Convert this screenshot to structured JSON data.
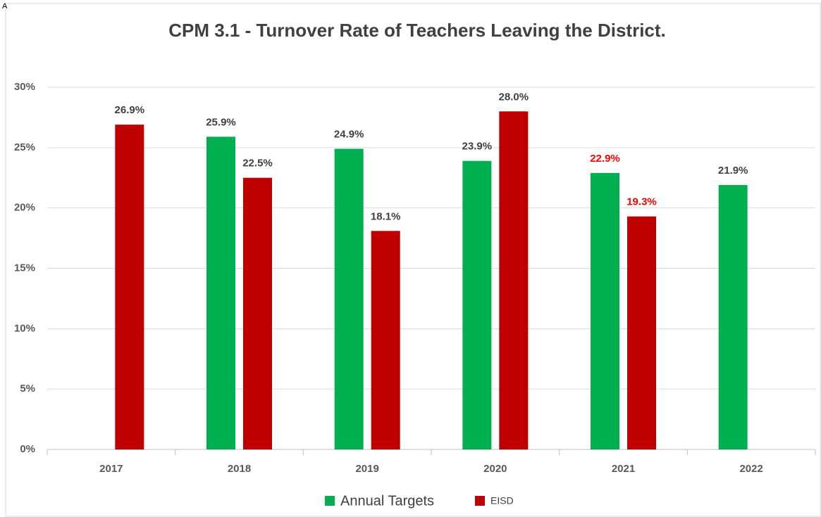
{
  "corner_text": "A",
  "chart_data": {
    "type": "bar",
    "title": "CPM 3.1 - Turnover Rate of Teachers Leaving the District.",
    "categories": [
      "2017",
      "2018",
      "2019",
      "2020",
      "2021",
      "2022"
    ],
    "series": [
      {
        "name": "Annual Targets",
        "color": "#00b050",
        "values": [
          null,
          25.9,
          24.9,
          23.9,
          22.9,
          21.9
        ],
        "value_labels": [
          null,
          "25.9%",
          "24.9%",
          "23.9%",
          "22.9%",
          "21.9%"
        ],
        "value_label_colors": [
          null,
          "#404040",
          "#404040",
          "#404040",
          "#ff0000",
          "#404040"
        ]
      },
      {
        "name": "EISD",
        "color": "#c00000",
        "values": [
          26.9,
          22.5,
          18.1,
          28.0,
          19.3,
          null
        ],
        "value_labels": [
          "26.9%",
          "22.5%",
          "18.1%",
          "28.0%",
          "19.3%",
          null
        ],
        "value_label_colors": [
          "#404040",
          "#404040",
          "#404040",
          "#404040",
          "#ff0000",
          null
        ]
      }
    ],
    "ylim": [
      0,
      30
    ],
    "yticks": [
      {
        "value": 0,
        "label": "0%"
      },
      {
        "value": 5,
        "label": "5%"
      },
      {
        "value": 10,
        "label": "10%"
      },
      {
        "value": 15,
        "label": "15%"
      },
      {
        "value": 20,
        "label": "20%"
      },
      {
        "value": 25,
        "label": "25%"
      },
      {
        "value": 30,
        "label": "30%"
      }
    ],
    "grid": true,
    "legend": "bottom"
  }
}
